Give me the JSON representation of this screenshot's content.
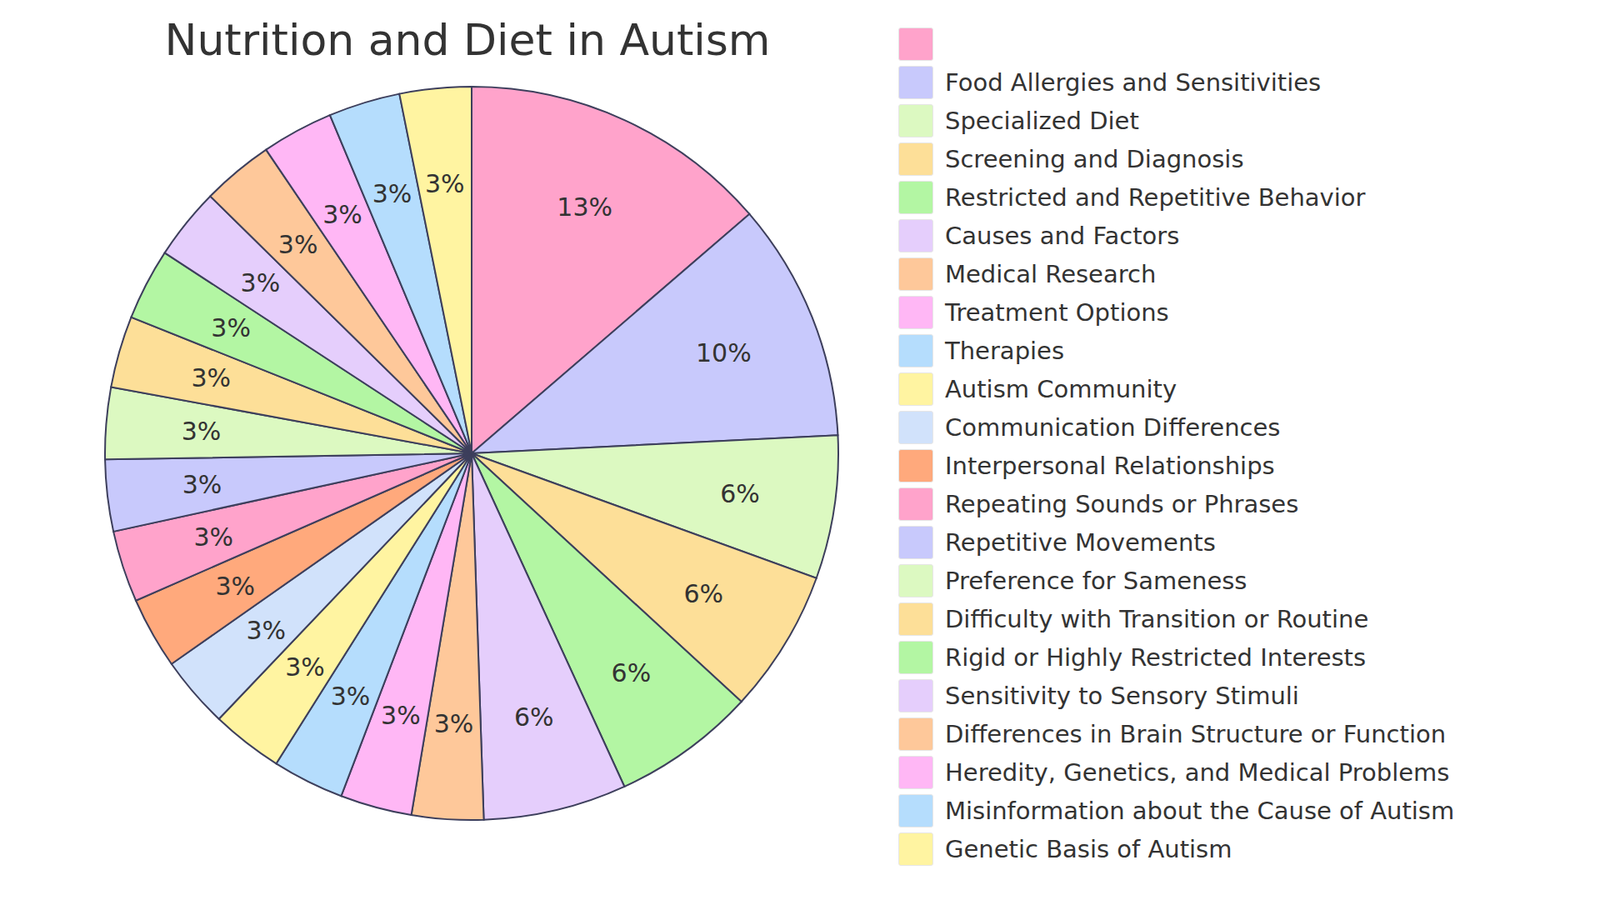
{
  "chart_data": {
    "type": "pie",
    "title": "Nutrition and Diet in Autism",
    "categories": [
      null,
      "Food Allergies and Sensitivities",
      "Specialized Diet",
      "Screening and Diagnosis",
      "Restricted and Repetitive Behavior",
      "Causes and Factors",
      "Medical Research",
      "Treatment Options",
      "Therapies",
      "Autism Community",
      "Communication Differences",
      "Interpersonal Relationships",
      "Repeating Sounds or Phrases",
      "Repetitive Movements",
      "Preference for Sameness",
      "Difficulty with Transition or Routine",
      "Rigid or Highly Restricted Interests",
      "Sensitivity to Sensory Stimuli",
      "Differences in Brain Structure or Function",
      "Heredity, Genetics, and Medical Problems",
      "Misinformation about the Cause of Autism",
      "Genetic Basis of Autism"
    ],
    "values": [
      13,
      10,
      6,
      6,
      6,
      6,
      3,
      3,
      3,
      3,
      3,
      3,
      3,
      3,
      3,
      3,
      3,
      3,
      3,
      3,
      3,
      3
    ],
    "value_labels": [
      "13%",
      "10%",
      "6%",
      "6%",
      "6%",
      "6%",
      "3%",
      "3%",
      "3%",
      "3%",
      "3%",
      "3%",
      "3%",
      "3%",
      "3%",
      "3%",
      "3%",
      "3%",
      "3%",
      "3%",
      "3%",
      "3%"
    ],
    "colors": [
      "#ffa3cb",
      "#c8c9fc",
      "#dcf9c1",
      "#fddf98",
      "#b3f6a3",
      "#e5cefc",
      "#fec89a",
      "#ffb7f5",
      "#b5ddfd",
      "#fff4a1",
      "#d1e2fb",
      "#ffa97c",
      "#ffa3cb",
      "#c8c9fc",
      "#dcf9c1",
      "#fddf98",
      "#b3f6a3",
      "#e5cefc",
      "#fec89a",
      "#ffb7f5",
      "#b5ddfd",
      "#fff4a1"
    ],
    "data_labels": true,
    "legend": "right"
  }
}
